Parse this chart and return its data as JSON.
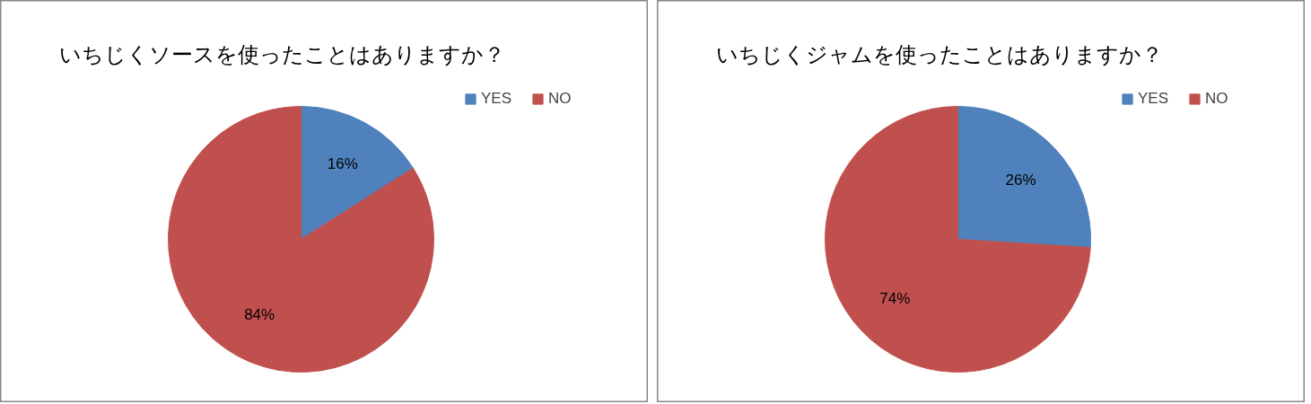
{
  "chart_data": [
    {
      "type": "pie",
      "title": "いちじくソースを使ったことはありますか？",
      "categories": [
        "YES",
        "NO"
      ],
      "values": [
        16,
        84
      ],
      "colors": [
        "#4f81bd",
        "#c0504d"
      ],
      "value_labels": [
        "16%",
        "84%"
      ],
      "legend": "top right"
    },
    {
      "type": "pie",
      "title": "いちじくジャムを使ったことはありますか？",
      "categories": [
        "YES",
        "NO"
      ],
      "values": [
        26,
        74
      ],
      "colors": [
        "#4f81bd",
        "#c0504d"
      ],
      "value_labels": [
        "26%",
        "74%"
      ],
      "legend": "top right"
    }
  ]
}
